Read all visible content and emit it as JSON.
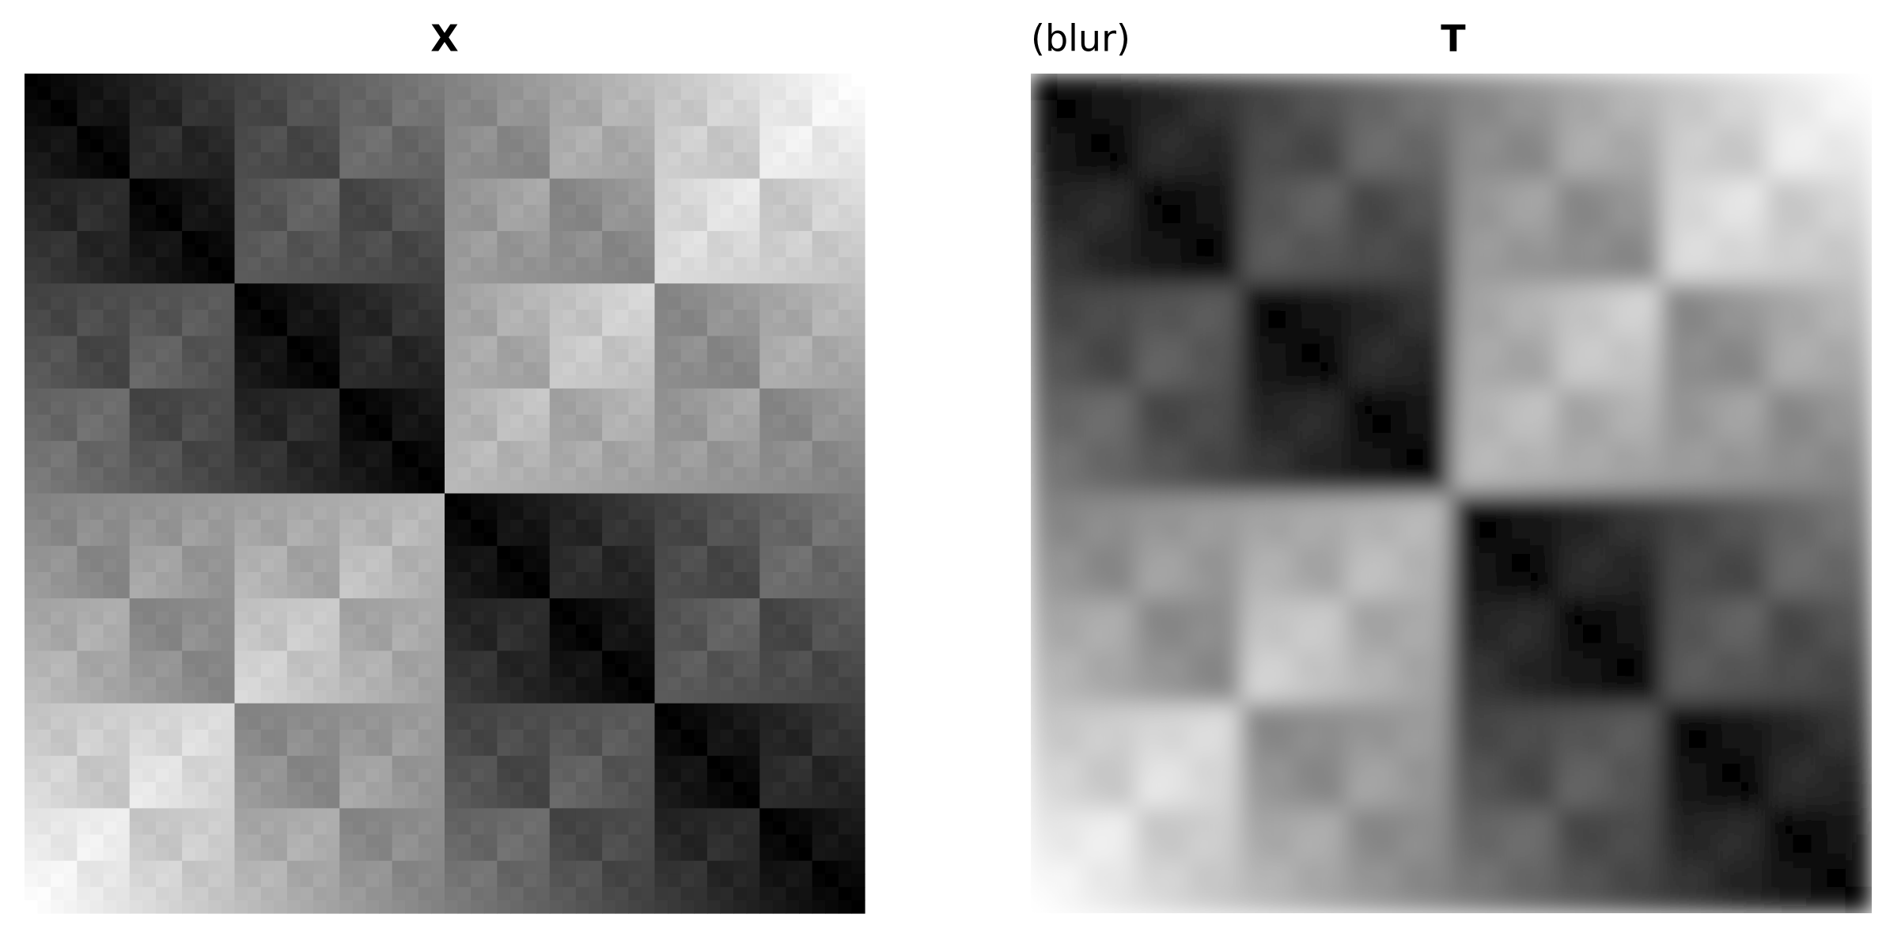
{
  "panels": [
    {
      "title": "X"
    },
    {
      "title": "T",
      "note": "(blur)"
    }
  ]
}
